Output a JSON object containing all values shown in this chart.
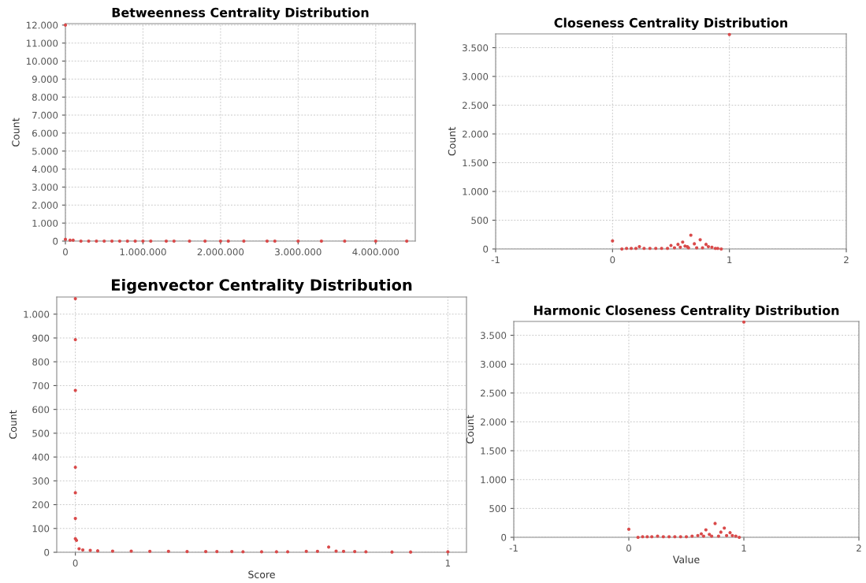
{
  "chart_data": [
    {
      "type": "scatter",
      "title": "Betweenness Centrality Distribution",
      "ylabel": "Count",
      "marker": "circle",
      "grid": true,
      "xlim": [
        0,
        4510000
      ],
      "ylim": [
        0,
        12080
      ],
      "xticks": [
        0,
        {
          "value": 1000000,
          "label": "1.000.000"
        },
        {
          "value": 2000000,
          "label": "2.000.000"
        },
        {
          "value": 3000000,
          "label": "3.000.000"
        },
        {
          "value": 4000000,
          "label": "4.000.000"
        }
      ],
      "yticks": [
        0,
        {
          "value": 1000,
          "label": "1.000"
        },
        {
          "value": 2000,
          "label": "2.000"
        },
        {
          "value": 3000,
          "label": "3.000"
        },
        {
          "value": 4000,
          "label": "4.000"
        },
        {
          "value": 5000,
          "label": "5.000"
        },
        {
          "value": 6000,
          "label": "6.000"
        },
        {
          "value": 7000,
          "label": "7.000"
        },
        {
          "value": 8000,
          "label": "8.000"
        },
        {
          "value": 9000,
          "label": "9.000"
        },
        {
          "value": 10000,
          "label": "10.000"
        },
        {
          "value": 11000,
          "label": "11.000"
        },
        {
          "value": 12000,
          "label": "12.000"
        }
      ],
      "series": [
        {
          "color": "#d94a4a",
          "x": [
            0,
            0,
            60000,
            100000,
            200000,
            300000,
            400000,
            500000,
            600000,
            700000,
            800000,
            900000,
            1000000,
            1100000,
            1300000,
            1400000,
            1600000,
            1800000,
            2000000,
            2100000,
            2300000,
            2600000,
            2700000,
            3000000,
            3300000,
            3600000,
            4000000,
            4400000
          ],
          "values": [
            12000,
            100,
            50,
            50,
            0,
            0,
            0,
            0,
            0,
            0,
            0,
            0,
            0,
            0,
            0,
            0,
            0,
            0,
            0,
            0,
            0,
            0,
            0,
            0,
            0,
            0,
            0,
            0
          ]
        }
      ]
    },
    {
      "type": "scatter",
      "title": "Closeness Centrality Distribution",
      "ylabel": "Count",
      "marker": "circle",
      "grid": true,
      "xlim": [
        -1,
        2
      ],
      "ylim": [
        0,
        3740
      ],
      "xticks": [
        {
          "value": -1,
          "label": "-1"
        },
        0,
        1,
        2
      ],
      "yticks": [
        0,
        500,
        {
          "value": 1000,
          "label": "1.000"
        },
        {
          "value": 1500,
          "label": "1.500"
        },
        {
          "value": 2000,
          "label": "2.000"
        },
        {
          "value": 2500,
          "label": "2.500"
        },
        {
          "value": 3000,
          "label": "3.000"
        },
        {
          "value": 3500,
          "label": "3.500"
        }
      ],
      "series": [
        {
          "color": "#d94a4a",
          "x": [
            0,
            1,
            0.08,
            0.12,
            0.16,
            0.2,
            0.23,
            0.27,
            0.32,
            0.37,
            0.42,
            0.47,
            0.5,
            0.53,
            0.56,
            0.58,
            0.6,
            0.62,
            0.64,
            0.65,
            0.67,
            0.7,
            0.72,
            0.75,
            0.77,
            0.8,
            0.82,
            0.85,
            0.88,
            0.9,
            0.93
          ],
          "values": [
            140,
            3730,
            0,
            10,
            10,
            10,
            40,
            10,
            10,
            10,
            10,
            10,
            60,
            20,
            80,
            30,
            120,
            50,
            40,
            20,
            240,
            90,
            20,
            160,
            20,
            80,
            40,
            30,
            10,
            10,
            0
          ]
        }
      ]
    },
    {
      "type": "scatter",
      "title": "Eigenvector Centrality Distribution",
      "xlabel": "Score",
      "ylabel": "Count",
      "marker": "circle",
      "grid": true,
      "xlim": [
        -0.05,
        1.05
      ],
      "ylim": [
        0,
        1072
      ],
      "xticks": [
        0,
        1
      ],
      "yticks": [
        0,
        100,
        200,
        300,
        400,
        500,
        600,
        700,
        800,
        900,
        {
          "value": 1000,
          "label": "1.000"
        }
      ],
      "series": [
        {
          "color": "#d94a4a",
          "x": [
            0,
            0,
            0,
            0,
            0,
            0,
            0,
            0.003,
            0.01,
            0.02,
            0.04,
            0.06,
            0.1,
            0.15,
            0.2,
            0.25,
            0.3,
            0.35,
            0.38,
            0.42,
            0.45,
            0.5,
            0.54,
            0.57,
            0.62,
            0.65,
            0.68,
            0.7,
            0.72,
            0.75,
            0.78,
            0.85,
            0.9,
            1
          ],
          "values": [
            1065,
            893,
            680,
            357,
            250,
            142,
            57,
            50,
            15,
            10,
            8,
            6,
            5,
            5,
            4,
            4,
            3,
            3,
            3,
            3,
            2,
            2,
            2,
            2,
            4,
            4,
            22,
            5,
            4,
            3,
            2,
            1,
            1,
            2
          ]
        }
      ]
    },
    {
      "type": "scatter",
      "title": "Harmonic Closeness Centrality Distribution",
      "xlabel": "Value",
      "ylabel": "Count",
      "marker": "circle",
      "grid": true,
      "xlim": [
        -1,
        2
      ],
      "ylim": [
        0,
        3740
      ],
      "xticks": [
        {
          "value": -1,
          "label": "-1"
        },
        0,
        1,
        2
      ],
      "yticks": [
        0,
        500,
        {
          "value": 1000,
          "label": "1.000"
        },
        {
          "value": 1500,
          "label": "1.500"
        },
        {
          "value": 2000,
          "label": "2.000"
        },
        {
          "value": 2500,
          "label": "2.500"
        },
        {
          "value": 3000,
          "label": "3.000"
        },
        {
          "value": 3500,
          "label": "3.500"
        }
      ],
      "series": [
        {
          "color": "#d94a4a",
          "x": [
            0,
            1,
            0.08,
            0.12,
            0.16,
            0.2,
            0.25,
            0.3,
            0.35,
            0.4,
            0.45,
            0.5,
            0.55,
            0.6,
            0.63,
            0.65,
            0.67,
            0.7,
            0.72,
            0.75,
            0.78,
            0.8,
            0.83,
            0.85,
            0.88,
            0.9,
            0.93,
            0.96
          ],
          "values": [
            140,
            3730,
            0,
            10,
            10,
            10,
            20,
            10,
            10,
            10,
            10,
            10,
            20,
            30,
            60,
            20,
            130,
            50,
            20,
            240,
            20,
            90,
            160,
            30,
            80,
            30,
            20,
            0
          ]
        }
      ]
    }
  ]
}
